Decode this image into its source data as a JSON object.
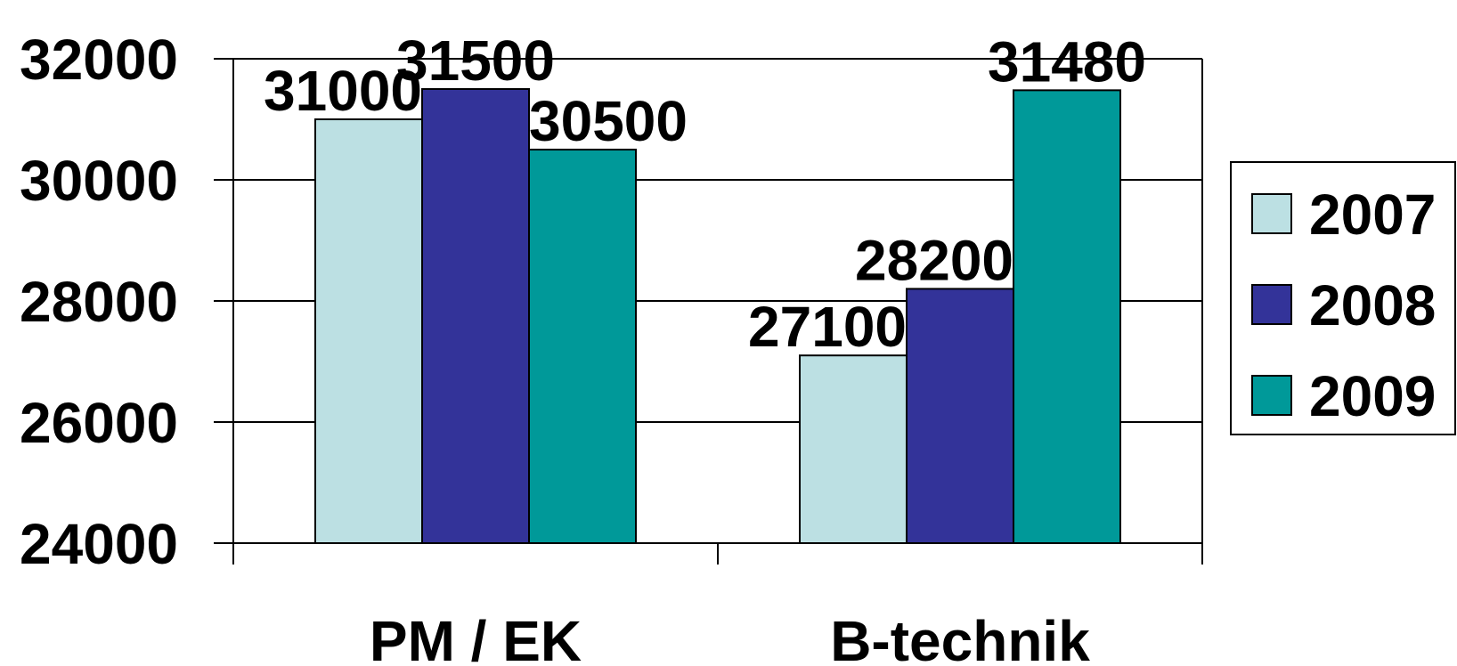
{
  "chart_data": {
    "type": "bar",
    "categories": [
      "PM / EK",
      "B-technik"
    ],
    "series": [
      {
        "name": "2007",
        "values": [
          31000,
          27100
        ],
        "color": "#BCE0E3"
      },
      {
        "name": "2008",
        "values": [
          31500,
          28200
        ],
        "color": "#333399"
      },
      {
        "name": "2009",
        "values": [
          30500,
          31480
        ],
        "color": "#009999"
      }
    ],
    "ylim": [
      24000,
      32000
    ],
    "yticks": [
      24000,
      26000,
      28000,
      30000,
      32000
    ],
    "grid": true,
    "legend_position": "right",
    "title": "",
    "xlabel": "",
    "ylabel": ""
  }
}
